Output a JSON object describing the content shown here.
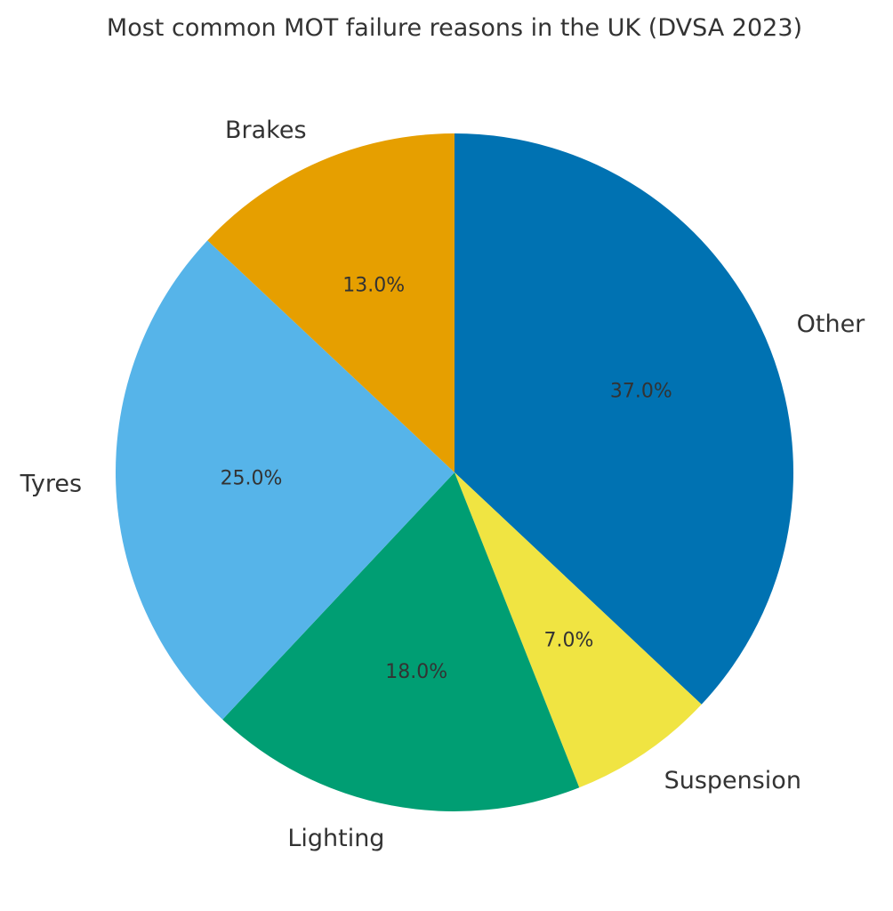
{
  "chart_data": {
    "type": "pie",
    "title": "Most common MOT failure reasons in the UK (DVSA 2023)",
    "start_angle_deg": 90,
    "direction": "clockwise",
    "slices": [
      {
        "label": "Other",
        "value": 37.0,
        "pct_label": "37.0%",
        "color": "#0072B2"
      },
      {
        "label": "Suspension",
        "value": 7.0,
        "pct_label": "7.0%",
        "color": "#F0E442"
      },
      {
        "label": "Lighting",
        "value": 18.0,
        "pct_label": "18.0%",
        "color": "#009E73"
      },
      {
        "label": "Tyres",
        "value": 25.0,
        "pct_label": "25.0%",
        "color": "#56B4E9"
      },
      {
        "label": "Brakes",
        "value": 13.0,
        "pct_label": "13.0%",
        "color": "#E69F00"
      }
    ]
  }
}
